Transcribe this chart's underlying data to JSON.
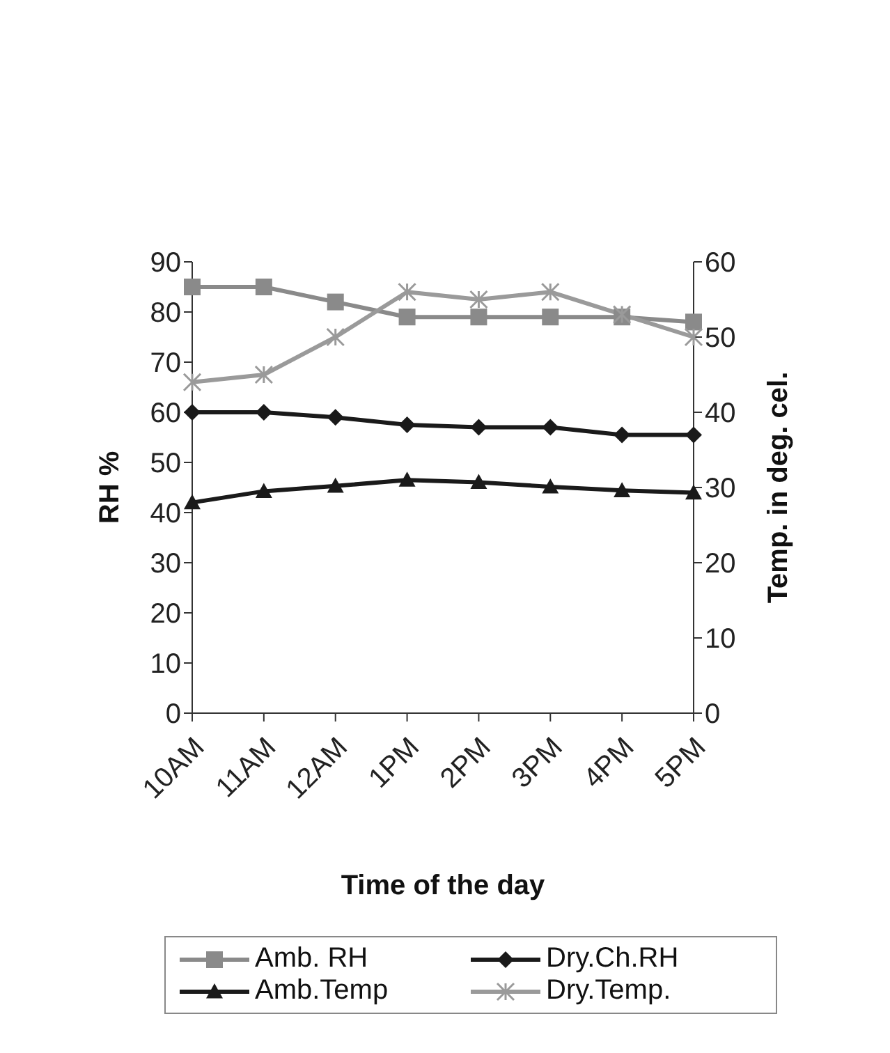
{
  "chart_data": {
    "type": "line",
    "xlabel": "Time of the day",
    "ylabel": "RH %",
    "y2label": "Temp. in deg. cel.",
    "categories": [
      "10AM",
      "11AM",
      "12AM",
      "1PM",
      "2PM",
      "3PM",
      "4PM",
      "5PM"
    ],
    "series": [
      {
        "name": "Amb. RH",
        "color": "#8a8a8a",
        "marker": "square",
        "values": [
          85,
          85,
          82,
          79,
          79,
          79,
          79,
          78
        ]
      },
      {
        "name": "Dry.Ch.RH",
        "color": "#1a1a1a",
        "marker": "diamond",
        "values": [
          60,
          60,
          59,
          57.5,
          57,
          57,
          55.5,
          55.5
        ]
      },
      {
        "name": "Amb.Temp",
        "color": "#1a1a1a",
        "marker": "triangle",
        "axis": "y2",
        "values": [
          28,
          29.5,
          30.2,
          31,
          30.7,
          30.1,
          29.6,
          29.3
        ]
      },
      {
        "name": "Dry.Temp.",
        "color": "#9a9a9a",
        "marker": "cross",
        "axis": "y2",
        "values": [
          44,
          45,
          50,
          56,
          55,
          56,
          53,
          50
        ]
      }
    ],
    "ylim": [
      0,
      90
    ],
    "yticks": [
      0,
      10,
      20,
      30,
      40,
      50,
      60,
      70,
      80,
      90
    ],
    "y2lim": [
      0,
      60
    ],
    "y2ticks": [
      0,
      10,
      20,
      30,
      40,
      50,
      60
    ],
    "grid": false,
    "legend": "bottom"
  }
}
